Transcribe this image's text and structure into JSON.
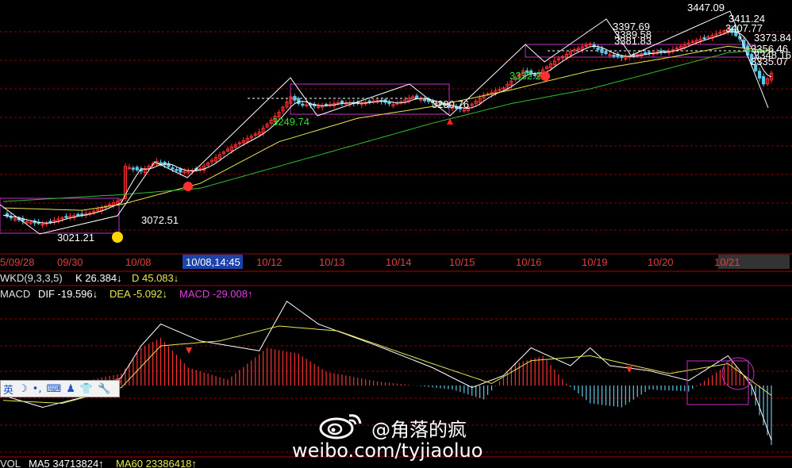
{
  "time_axis": {
    "labels": [
      "5/09/28",
      "09/30",
      "10/08",
      "10/08,14:45",
      "10/12",
      "10/13",
      "10/14",
      "10/15",
      "10/16",
      "10/19",
      "10/20",
      "10/21"
    ],
    "highlight": "10/08,14:45"
  },
  "price_annotations": [
    "3447.09",
    "3411.24",
    "3407.77",
    "3397.69",
    "3389.58",
    "3381.83",
    "3373.84",
    "3356.46",
    "3348.16",
    "3335.07",
    "3332.2",
    "3290.76",
    "3249.74",
    "3072.51",
    "3021.21"
  ],
  "indicator_kd": {
    "name": "WKD(9,3,3,5)",
    "k": "K 26.384↓",
    "d": "D 45.083↓"
  },
  "indicator_macd": {
    "name": "MACD",
    "dif": "DIF -19.596↓",
    "dea": "DEA -5.092↓",
    "macd": "MACD -29.008↑"
  },
  "indicator_vol": {
    "name": "VOL",
    "ma5": "MA5 34713824↑",
    "ma60": "MA60 23386418↑"
  },
  "ime_toolbar": {
    "lang": "英",
    "icons": [
      "moon-icon",
      "dot-icon",
      "keyboard-icon",
      "user-icon",
      "shirt-icon",
      "wrench-icon"
    ]
  },
  "watermark": {
    "handle": "@角落的疯",
    "url": "weibo.com/tyjiaoluo"
  },
  "colors": {
    "up": "#ff3030",
    "down": "#5ec8e8",
    "ma_short": "#ffffff",
    "ma_mid": "#e8e850",
    "ma_long": "#30c030",
    "box": "#c030c0",
    "grid": "#8b0000"
  },
  "chart_data": {
    "type": "line",
    "title": "",
    "y_range": [
      3000,
      3460
    ],
    "x_count": 260,
    "price_close_anchors": [
      [
        0,
        3040
      ],
      [
        10,
        3028
      ],
      [
        20,
        3022
      ],
      [
        30,
        3035
      ],
      [
        45,
        3045
      ],
      [
        60,
        3072
      ],
      [
        62,
        3140
      ],
      [
        70,
        3130
      ],
      [
        78,
        3150
      ],
      [
        90,
        3128
      ],
      [
        100,
        3135
      ],
      [
        115,
        3175
      ],
      [
        130,
        3210
      ],
      [
        140,
        3250
      ],
      [
        146,
        3282
      ],
      [
        150,
        3268
      ],
      [
        160,
        3262
      ],
      [
        170,
        3270
      ],
      [
        180,
        3268
      ],
      [
        190,
        3275
      ],
      [
        200,
        3266
      ],
      [
        210,
        3282
      ],
      [
        220,
        3270
      ],
      [
        228,
        3262
      ],
      [
        236,
        3255
      ],
      [
        246,
        3285
      ],
      [
        256,
        3300
      ],
      [
        266,
        3335
      ],
      [
        272,
        3325
      ],
      [
        282,
        3355
      ],
      [
        292,
        3378
      ],
      [
        300,
        3390
      ],
      [
        306,
        3372
      ],
      [
        316,
        3362
      ],
      [
        326,
        3370
      ],
      [
        340,
        3375
      ],
      [
        352,
        3395
      ],
      [
        362,
        3407
      ],
      [
        370,
        3420
      ],
      [
        376,
        3400
      ],
      [
        382,
        3350
      ],
      [
        386,
        3320
      ],
      [
        388,
        3308
      ],
      [
        392,
        3330
      ]
    ],
    "ma_mid_anchors": [
      [
        0,
        3055
      ],
      [
        40,
        3050
      ],
      [
        60,
        3062
      ],
      [
        100,
        3105
      ],
      [
        140,
        3190
      ],
      [
        180,
        3238
      ],
      [
        220,
        3262
      ],
      [
        260,
        3296
      ],
      [
        300,
        3335
      ],
      [
        340,
        3362
      ],
      [
        370,
        3385
      ],
      [
        392,
        3375
      ]
    ],
    "ma_long_anchors": [
      [
        0,
        3068
      ],
      [
        60,
        3082
      ],
      [
        100,
        3095
      ],
      [
        140,
        3140
      ],
      [
        180,
        3185
      ],
      [
        220,
        3228
      ],
      [
        260,
        3268
      ],
      [
        300,
        3298
      ],
      [
        340,
        3340
      ],
      [
        370,
        3372
      ],
      [
        392,
        3378
      ]
    ],
    "macd_dif_anchors": [
      [
        0,
        -10
      ],
      [
        20,
        -22
      ],
      [
        40,
        -12
      ],
      [
        60,
        8
      ],
      [
        70,
        40
      ],
      [
        80,
        62
      ],
      [
        100,
        45
      ],
      [
        130,
        35
      ],
      [
        145,
        85
      ],
      [
        160,
        62
      ],
      [
        190,
        40
      ],
      [
        220,
        18
      ],
      [
        240,
        -2
      ],
      [
        256,
        10
      ],
      [
        270,
        38
      ],
      [
        290,
        20
      ],
      [
        300,
        38
      ],
      [
        310,
        20
      ],
      [
        330,
        15
      ],
      [
        350,
        5
      ],
      [
        370,
        30
      ],
      [
        382,
        0
      ],
      [
        392,
        -55
      ]
    ],
    "macd_dea_anchors": [
      [
        0,
        -15
      ],
      [
        30,
        -18
      ],
      [
        60,
        -2
      ],
      [
        80,
        40
      ],
      [
        110,
        45
      ],
      [
        140,
        60
      ],
      [
        170,
        55
      ],
      [
        220,
        22
      ],
      [
        250,
        2
      ],
      [
        270,
        25
      ],
      [
        300,
        30
      ],
      [
        340,
        12
      ],
      [
        370,
        22
      ],
      [
        392,
        -10
      ]
    ],
    "macd_hist_anchors": [
      [
        0,
        -5
      ],
      [
        20,
        -8
      ],
      [
        40,
        4
      ],
      [
        60,
        12
      ],
      [
        70,
        38
      ],
      [
        80,
        48
      ],
      [
        95,
        18
      ],
      [
        115,
        6
      ],
      [
        135,
        38
      ],
      [
        150,
        32
      ],
      [
        165,
        14
      ],
      [
        190,
        4
      ],
      [
        230,
        -4
      ],
      [
        245,
        -14
      ],
      [
        262,
        22
      ],
      [
        275,
        30
      ],
      [
        288,
        2
      ],
      [
        300,
        -18
      ],
      [
        315,
        -22
      ],
      [
        330,
        -4
      ],
      [
        350,
        -6
      ],
      [
        372,
        24
      ],
      [
        378,
        10
      ],
      [
        392,
        -60
      ]
    ]
  }
}
